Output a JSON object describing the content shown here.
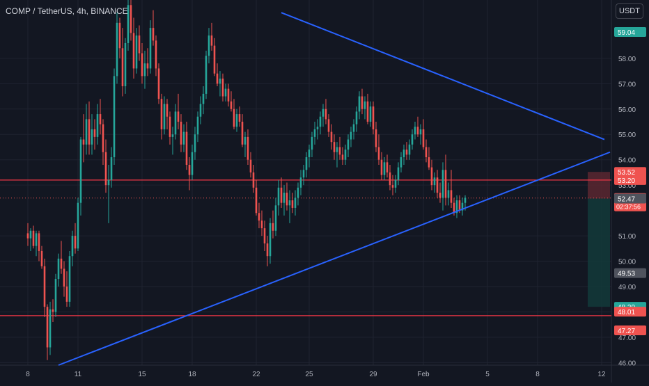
{
  "header": {
    "symbol_title": "COMP / TetherUS, 4h, BINANCE",
    "currency_button": "USDT"
  },
  "colors": {
    "background": "#131722",
    "grid": "#1f2330",
    "up": "#26a69a",
    "down": "#ef5350",
    "trendline": "#2962ff",
    "level_line": "#f23645",
    "axis_text": "#b2b5be",
    "stop_zone": "#5b2730",
    "target_zone": "#133a3a"
  },
  "chart_data": {
    "type": "candlestick",
    "symbol": "COMP / TetherUS",
    "interval": "4h",
    "exchange": "BINANCE",
    "y_axis": {
      "range": [
        45.9,
        60.3
      ],
      "ticks": [
        "46.00",
        "47.00",
        "48.00",
        "49.00",
        "50.00",
        "51.00",
        "53.00",
        "54.00",
        "55.00",
        "56.00",
        "57.00",
        "58.00"
      ]
    },
    "x_axis": {
      "ticks": [
        {
          "label": "8",
          "index": 0
        },
        {
          "label": "11",
          "index": 18
        },
        {
          "label": "15",
          "index": 41
        },
        {
          "label": "18",
          "index": 59
        },
        {
          "label": "22",
          "index": 82
        },
        {
          "label": "25",
          "index": 101
        },
        {
          "label": "29",
          "index": 124
        },
        {
          "label": "Feb",
          "index": 142
        },
        {
          "label": "5",
          "index": 165
        },
        {
          "label": "8",
          "index": 183
        },
        {
          "label": "12",
          "index": 206
        }
      ]
    },
    "candles": [
      [
        51.1,
        51.5,
        50.6,
        50.9
      ],
      [
        50.9,
        51.3,
        50.4,
        51.2
      ],
      [
        51.2,
        51.4,
        50.5,
        50.6
      ],
      [
        50.6,
        51.2,
        50.2,
        51.1
      ],
      [
        51.1,
        51.2,
        50.0,
        50.4
      ],
      [
        50.4,
        50.6,
        49.7,
        49.8
      ],
      [
        49.8,
        50.1,
        47.8,
        48.2
      ],
      [
        48.2,
        48.3,
        46.1,
        46.6
      ],
      [
        46.6,
        48.4,
        46.3,
        48.1
      ],
      [
        48.1,
        48.5,
        47.6,
        48.0
      ],
      [
        48.0,
        49.5,
        47.8,
        49.3
      ],
      [
        49.3,
        50.3,
        49.0,
        50.1
      ],
      [
        50.1,
        50.8,
        49.5,
        49.7
      ],
      [
        49.7,
        50.0,
        48.6,
        49.0
      ],
      [
        49.0,
        49.6,
        48.2,
        48.4
      ],
      [
        48.4,
        50.4,
        48.2,
        50.2
      ],
      [
        50.2,
        51.2,
        49.8,
        51.0
      ],
      [
        51.0,
        51.5,
        50.3,
        50.5
      ],
      [
        50.5,
        52.5,
        50.4,
        52.3
      ],
      [
        52.3,
        54.9,
        51.8,
        54.8
      ],
      [
        54.8,
        55.8,
        53.9,
        54.6
      ],
      [
        54.6,
        56.2,
        54.2,
        55.6
      ],
      [
        55.6,
        56.3,
        54.2,
        54.6
      ],
      [
        54.6,
        55.8,
        54.2,
        55.2
      ],
      [
        55.2,
        55.6,
        54.4,
        54.9
      ],
      [
        54.9,
        56.2,
        54.6,
        55.8
      ],
      [
        55.8,
        56.4,
        55.0,
        55.4
      ],
      [
        55.4,
        55.6,
        53.8,
        54.3
      ],
      [
        54.3,
        54.8,
        52.7,
        53.0
      ],
      [
        53.0,
        53.8,
        51.5,
        53.2
      ],
      [
        53.2,
        54.5,
        52.9,
        54.1
      ],
      [
        54.1,
        57.6,
        53.8,
        57.3
      ],
      [
        57.3,
        59.8,
        57.0,
        59.4
      ],
      [
        59.4,
        59.6,
        58.0,
        58.4
      ],
      [
        58.4,
        59.2,
        56.5,
        56.9
      ],
      [
        56.9,
        58.8,
        56.6,
        58.6
      ],
      [
        58.6,
        60.4,
        58.3,
        60.1
      ],
      [
        60.1,
        60.4,
        58.7,
        59.0
      ],
      [
        59.0,
        59.6,
        57.2,
        57.6
      ],
      [
        57.6,
        59.2,
        57.4,
        58.9
      ],
      [
        58.9,
        59.3,
        57.9,
        58.2
      ],
      [
        58.2,
        58.6,
        57.0,
        57.3
      ],
      [
        57.3,
        58.3,
        56.8,
        57.8
      ],
      [
        57.8,
        58.4,
        57.3,
        57.6
      ],
      [
        57.6,
        59.5,
        57.4,
        59.2
      ],
      [
        59.2,
        59.9,
        58.5,
        58.7
      ],
      [
        58.7,
        58.9,
        57.3,
        57.6
      ],
      [
        57.6,
        57.8,
        56.2,
        56.4
      ],
      [
        56.4,
        56.6,
        54.8,
        55.2
      ],
      [
        55.2,
        56.5,
        55.0,
        56.2
      ],
      [
        56.2,
        56.4,
        55.2,
        55.7
      ],
      [
        55.7,
        55.9,
        54.6,
        54.9
      ],
      [
        54.9,
        55.3,
        54.2,
        55.0
      ],
      [
        55.0,
        56.2,
        54.8,
        55.9
      ],
      [
        55.9,
        56.6,
        55.2,
        55.5
      ],
      [
        55.5,
        55.8,
        54.3,
        54.6
      ],
      [
        54.6,
        55.4,
        54.3,
        55.1
      ],
      [
        55.1,
        55.5,
        53.6,
        53.8
      ],
      [
        53.8,
        54.1,
        52.8,
        53.4
      ],
      [
        53.4,
        54.6,
        53.2,
        54.3
      ],
      [
        54.3,
        55.3,
        54.0,
        55.0
      ],
      [
        55.0,
        55.9,
        54.7,
        55.7
      ],
      [
        55.7,
        56.5,
        55.4,
        56.2
      ],
      [
        56.2,
        56.9,
        55.8,
        56.6
      ],
      [
        56.6,
        58.3,
        56.4,
        58.1
      ],
      [
        58.1,
        59.2,
        57.8,
        58.9
      ],
      [
        58.9,
        59.4,
        58.3,
        58.5
      ],
      [
        58.5,
        58.8,
        57.3,
        57.4
      ],
      [
        57.4,
        57.8,
        56.9,
        57.0
      ],
      [
        57.0,
        57.5,
        56.5,
        57.2
      ],
      [
        57.2,
        57.4,
        56.3,
        56.5
      ],
      [
        56.5,
        57.0,
        56.3,
        56.8
      ],
      [
        56.8,
        57.0,
        56.1,
        56.3
      ],
      [
        56.3,
        56.7,
        55.9,
        56.0
      ],
      [
        56.0,
        56.4,
        55.2,
        55.3
      ],
      [
        55.3,
        56.0,
        55.1,
        55.8
      ],
      [
        55.8,
        56.1,
        55.3,
        55.5
      ],
      [
        55.5,
        55.8,
        54.5,
        54.6
      ],
      [
        54.6,
        55.1,
        54.1,
        54.9
      ],
      [
        54.9,
        55.2,
        53.8,
        54.0
      ],
      [
        54.0,
        54.3,
        53.3,
        53.5
      ],
      [
        53.5,
        53.8,
        52.7,
        52.9
      ],
      [
        52.9,
        53.2,
        51.8,
        51.9
      ],
      [
        51.9,
        52.3,
        51.3,
        51.6
      ],
      [
        51.6,
        52.0,
        51.0,
        51.3
      ],
      [
        51.3,
        51.6,
        50.4,
        50.7
      ],
      [
        50.7,
        51.0,
        49.8,
        50.2
      ],
      [
        50.2,
        51.7,
        49.9,
        51.5
      ],
      [
        51.5,
        52.0,
        50.9,
        51.2
      ],
      [
        51.2,
        52.5,
        51.0,
        52.2
      ],
      [
        52.2,
        53.2,
        51.8,
        52.9
      ],
      [
        52.9,
        53.3,
        52.1,
        52.3
      ],
      [
        52.3,
        53.0,
        51.8,
        52.7
      ],
      [
        52.7,
        53.1,
        52.0,
        52.2
      ],
      [
        52.2,
        52.8,
        51.5,
        52.4
      ],
      [
        52.4,
        52.7,
        51.9,
        52.1
      ],
      [
        52.1,
        52.8,
        51.8,
        52.5
      ],
      [
        52.5,
        53.1,
        52.2,
        52.9
      ],
      [
        52.9,
        53.6,
        52.6,
        53.3
      ],
      [
        53.3,
        53.8,
        53.0,
        53.6
      ],
      [
        53.6,
        54.3,
        53.3,
        54.1
      ],
      [
        54.1,
        54.6,
        53.7,
        54.4
      ],
      [
        54.4,
        55.1,
        54.1,
        54.9
      ],
      [
        54.9,
        55.5,
        54.6,
        55.2
      ],
      [
        55.2,
        55.6,
        54.8,
        55.3
      ],
      [
        55.3,
        55.9,
        55.0,
        55.7
      ],
      [
        55.7,
        56.2,
        55.3,
        56.0
      ],
      [
        56.0,
        56.4,
        55.4,
        55.6
      ],
      [
        55.6,
        55.8,
        54.9,
        55.1
      ],
      [
        55.1,
        55.4,
        54.4,
        54.7
      ],
      [
        54.7,
        55.0,
        54.0,
        54.3
      ],
      [
        54.3,
        54.7,
        53.7,
        54.5
      ],
      [
        54.5,
        54.9,
        54.0,
        54.2
      ],
      [
        54.2,
        54.5,
        53.8,
        54.0
      ],
      [
        54.0,
        54.6,
        53.8,
        54.4
      ],
      [
        54.4,
        55.0,
        54.1,
        54.8
      ],
      [
        54.8,
        55.3,
        54.5,
        55.1
      ],
      [
        55.1,
        55.6,
        54.8,
        55.4
      ],
      [
        55.4,
        56.1,
        55.1,
        55.9
      ],
      [
        55.9,
        56.7,
        55.6,
        56.5
      ],
      [
        56.5,
        56.8,
        55.8,
        56.0
      ],
      [
        56.0,
        56.5,
        55.6,
        56.3
      ],
      [
        56.3,
        56.6,
        55.4,
        55.5
      ],
      [
        55.5,
        56.3,
        55.3,
        56.1
      ],
      [
        56.1,
        56.3,
        55.0,
        55.2
      ],
      [
        55.2,
        55.5,
        54.3,
        54.5
      ],
      [
        54.5,
        55.0,
        53.8,
        54.0
      ],
      [
        54.0,
        54.3,
        53.2,
        53.4
      ],
      [
        53.4,
        54.1,
        53.2,
        53.9
      ],
      [
        53.9,
        54.2,
        53.3,
        53.5
      ],
      [
        53.5,
        53.8,
        52.8,
        53.0
      ],
      [
        53.0,
        53.4,
        52.6,
        52.9
      ],
      [
        52.9,
        53.4,
        52.7,
        53.2
      ],
      [
        53.2,
        53.9,
        53.0,
        53.7
      ],
      [
        53.7,
        54.3,
        53.5,
        54.1
      ],
      [
        54.1,
        54.6,
        53.8,
        54.4
      ],
      [
        54.4,
        54.7,
        54.0,
        54.2
      ],
      [
        54.2,
        54.8,
        54.0,
        54.6
      ],
      [
        54.6,
        55.2,
        54.4,
        55.0
      ],
      [
        55.0,
        55.5,
        54.8,
        55.3
      ],
      [
        55.3,
        55.7,
        54.9,
        55.0
      ],
      [
        55.0,
        55.4,
        54.6,
        55.2
      ],
      [
        55.2,
        55.6,
        54.4,
        54.5
      ],
      [
        54.5,
        54.8,
        53.9,
        54.1
      ],
      [
        54.1,
        54.5,
        53.6,
        53.7
      ],
      [
        53.7,
        54.0,
        52.8,
        53.0
      ],
      [
        53.0,
        53.5,
        52.7,
        53.3
      ],
      [
        53.3,
        53.6,
        52.5,
        52.7
      ],
      [
        52.7,
        53.1,
        52.3,
        52.5
      ],
      [
        52.5,
        53.9,
        52.0,
        53.6
      ],
      [
        53.6,
        54.2,
        52.2,
        52.5
      ],
      [
        52.5,
        53.1,
        52.2,
        52.8
      ],
      [
        52.8,
        53.6,
        52.1,
        52.3
      ],
      [
        52.3,
        52.5,
        51.8,
        51.9
      ],
      [
        51.9,
        52.6,
        51.7,
        52.4
      ],
      [
        52.4,
        52.6,
        51.9,
        52.0
      ],
      [
        52.0,
        52.5,
        51.8,
        52.3
      ],
      [
        52.3,
        52.6,
        52.0,
        52.5
      ]
    ],
    "trendlines": [
      {
        "from": [
          91,
          59.8
        ],
        "to": [
          207,
          54.8
        ]
      },
      {
        "from": [
          11,
          45.9
        ],
        "to": [
          209,
          54.3
        ]
      }
    ],
    "horizontal_lines": [
      53.2,
      47.85
    ],
    "last_price_line": 52.49,
    "position_box": {
      "from_index": 201,
      "to_index": 236,
      "stop": 53.52,
      "entry": 52.47,
      "target": 48.2
    },
    "price_labels": [
      {
        "value": 59.04,
        "text": "59.04",
        "style": "up"
      },
      {
        "value": 53.52,
        "text": "53.52",
        "style": "down"
      },
      {
        "value": 53.2,
        "text": "53.20",
        "style": "down"
      },
      {
        "value": 52.49,
        "text": "52.49",
        "sub": "02:37:56",
        "style": "down"
      },
      {
        "value": 52.47,
        "text": "52.47",
        "style": "gray"
      },
      {
        "value": 49.53,
        "text": "49.53",
        "style": "gray"
      },
      {
        "value": 48.2,
        "text": "48.20",
        "style": "up"
      },
      {
        "value": 48.01,
        "text": "48.01",
        "style": "down"
      },
      {
        "value": 47.27,
        "text": "47.27",
        "style": "down"
      }
    ]
  }
}
